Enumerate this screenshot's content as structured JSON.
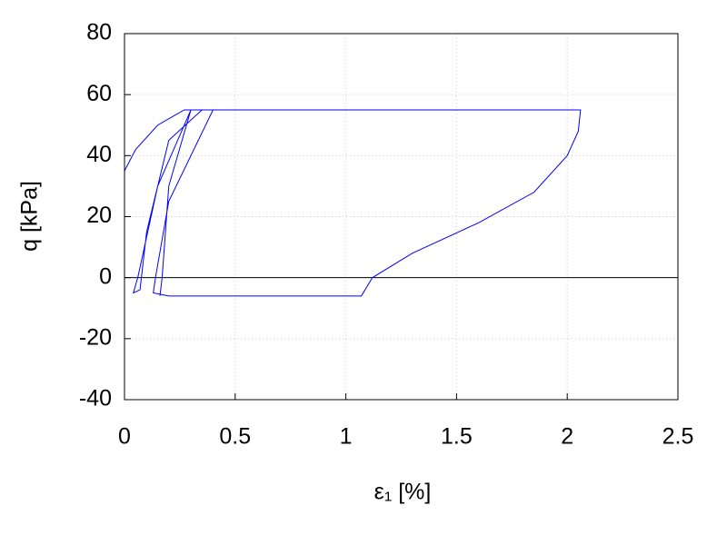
{
  "chart_data": {
    "type": "line",
    "xlabel": "ε₁ [%]",
    "ylabel": "q [kPa]",
    "xlim": [
      0,
      2.5
    ],
    "xticks": [
      0,
      0.5,
      1,
      1.5,
      2,
      2.5
    ],
    "ylim": [
      -40,
      80
    ],
    "yticks": [
      -40,
      -20,
      0,
      20,
      40,
      60,
      80
    ],
    "grid": true,
    "hline": 0,
    "series": [
      {
        "color": "#0000ff",
        "x": [
          0,
          0,
          0.05,
          0.15,
          0.27,
          0.3,
          0.15,
          0.06,
          0.04,
          0.07,
          0.1,
          0.2,
          0.35,
          0.4,
          0.2,
          0.14,
          0.13,
          0.2,
          1.07,
          1.12,
          1.3,
          1.6,
          1.85,
          2.0,
          2.05,
          2.06,
          0.3,
          0.2,
          0.17,
          0.16
        ],
        "values": [
          20,
          35,
          42,
          50,
          55,
          55,
          30,
          0,
          -5,
          -4,
          15,
          45,
          55,
          55,
          25,
          0,
          -5,
          -6,
          -6,
          0,
          8,
          18,
          28,
          40,
          48,
          55,
          55,
          30,
          0,
          -6
        ]
      }
    ]
  }
}
